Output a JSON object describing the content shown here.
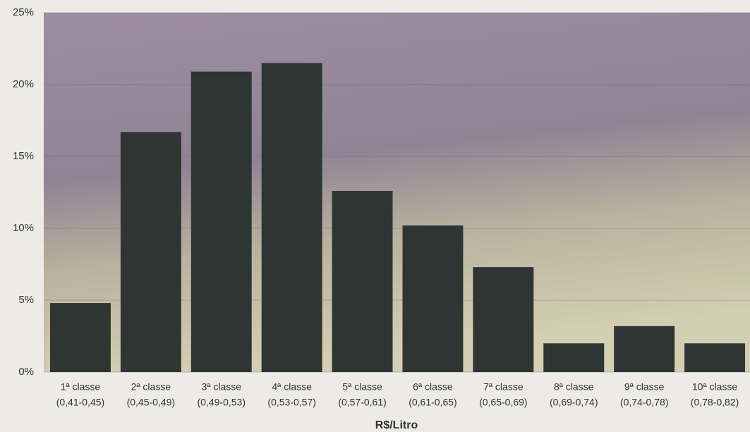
{
  "chart_data": {
    "type": "bar",
    "xlabel": "R$/Litro",
    "categories": [
      [
        "1ª classe",
        "(0,41-0,45)"
      ],
      [
        "2ª classe",
        "(0,45-0,49)"
      ],
      [
        "3ª classe",
        "(0,49-0,53)"
      ],
      [
        "4ª classe",
        "(0,53-0,57)"
      ],
      [
        "5ª classe",
        "(0,57-0,61)"
      ],
      [
        "6ª classe",
        "(0,61-0,65)"
      ],
      [
        "7ª classe",
        "(0,65-0,69)"
      ],
      [
        "8ª classe",
        "(0,69-0,74)"
      ],
      [
        "9ª classe",
        "(0,74-0,78)"
      ],
      [
        "10ª classe",
        "(0,78-0,82)"
      ]
    ],
    "values": [
      4.8,
      16.7,
      20.9,
      21.5,
      12.6,
      10.2,
      7.3,
      2.0,
      3.2,
      2.0
    ],
    "color": "#2f3533",
    "ylim": [
      0,
      25
    ],
    "yticks": [
      {
        "value": 0,
        "label": "0%"
      },
      {
        "value": 5,
        "label": "5%"
      },
      {
        "value": 10,
        "label": "10%"
      },
      {
        "value": 15,
        "label": "15%"
      },
      {
        "value": 20,
        "label": "20%"
      },
      {
        "value": 25,
        "label": "25%"
      }
    ],
    "grid": true
  }
}
